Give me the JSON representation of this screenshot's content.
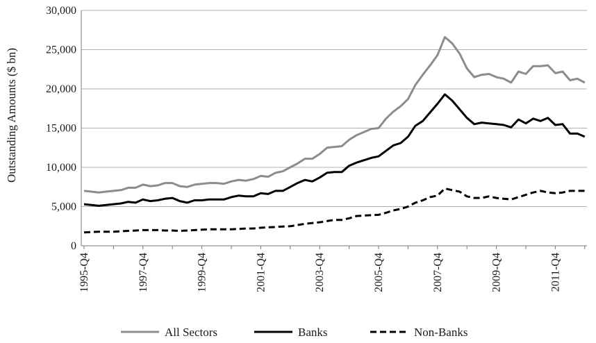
{
  "chart_data": {
    "type": "line",
    "ylabel": "Outstanding Amounts ($ bn)",
    "xlabel": "",
    "ylim": [
      0,
      30000
    ],
    "y_ticks": [
      0,
      5000,
      10000,
      15000,
      20000,
      25000,
      30000
    ],
    "y_tick_labels": [
      "0",
      "5,000",
      "10,000",
      "15,000",
      "20,000",
      "25,000",
      "30,000"
    ],
    "x_tick_labels": [
      "1995-Q4",
      "1997-Q4",
      "1999-Q4",
      "2001-Q4",
      "2003-Q4",
      "2005-Q4",
      "2007-Q4",
      "2009-Q4",
      "2011-Q4"
    ],
    "grid": "horizontal",
    "legend_position": "bottom",
    "x": [
      "1995-Q4",
      "1996-Q1",
      "1996-Q2",
      "1996-Q3",
      "1996-Q4",
      "1997-Q1",
      "1997-Q2",
      "1997-Q3",
      "1997-Q4",
      "1998-Q1",
      "1998-Q2",
      "1998-Q3",
      "1998-Q4",
      "1999-Q1",
      "1999-Q2",
      "1999-Q3",
      "1999-Q4",
      "2000-Q1",
      "2000-Q2",
      "2000-Q3",
      "2000-Q4",
      "2001-Q1",
      "2001-Q2",
      "2001-Q3",
      "2001-Q4",
      "2002-Q1",
      "2002-Q2",
      "2002-Q3",
      "2002-Q4",
      "2003-Q1",
      "2003-Q2",
      "2003-Q3",
      "2003-Q4",
      "2004-Q1",
      "2004-Q2",
      "2004-Q3",
      "2004-Q4",
      "2005-Q1",
      "2005-Q2",
      "2005-Q3",
      "2005-Q4",
      "2006-Q1",
      "2006-Q2",
      "2006-Q3",
      "2006-Q4",
      "2007-Q1",
      "2007-Q2",
      "2007-Q3",
      "2007-Q4",
      "2008-Q1",
      "2008-Q2",
      "2008-Q3",
      "2008-Q4",
      "2009-Q1",
      "2009-Q2",
      "2009-Q3",
      "2009-Q4",
      "2010-Q1",
      "2010-Q2",
      "2010-Q3",
      "2010-Q4",
      "2011-Q1",
      "2011-Q2",
      "2011-Q3",
      "2011-Q4",
      "2012-Q1",
      "2012-Q2",
      "2012-Q3",
      "2012-Q4"
    ],
    "series": [
      {
        "name": "All Sectors",
        "color": "#8c8c8c",
        "dash": "solid",
        "values": [
          7000,
          6900,
          6800,
          6900,
          7000,
          7100,
          7400,
          7400,
          7800,
          7600,
          7700,
          8000,
          8000,
          7600,
          7500,
          7800,
          7900,
          8000,
          8000,
          7900,
          8200,
          8400,
          8300,
          8500,
          8900,
          8800,
          9300,
          9500,
          10000,
          10500,
          11100,
          11100,
          11700,
          12500,
          12600,
          12700,
          13500,
          14100,
          14500,
          14900,
          15000,
          16200,
          17100,
          17800,
          18700,
          20500,
          21800,
          23000,
          24300,
          26600,
          25800,
          24500,
          22600,
          21500,
          21800,
          21900,
          21500,
          21300,
          20800,
          22200,
          21900,
          22900,
          22900,
          23000,
          22000,
          22200,
          21100,
          21300,
          20800
        ]
      },
      {
        "name": "Banks",
        "color": "#000000",
        "dash": "solid",
        "values": [
          5300,
          5200,
          5100,
          5200,
          5300,
          5400,
          5600,
          5500,
          5900,
          5700,
          5800,
          6000,
          6100,
          5700,
          5500,
          5800,
          5800,
          5900,
          5900,
          5900,
          6200,
          6400,
          6300,
          6300,
          6700,
          6600,
          7000,
          7000,
          7500,
          8000,
          8400,
          8200,
          8700,
          9300,
          9400,
          9400,
          10200,
          10600,
          10900,
          11200,
          11400,
          12100,
          12800,
          13100,
          13900,
          15300,
          15900,
          17000,
          18100,
          19300,
          18500,
          17400,
          16300,
          15500,
          15700,
          15600,
          15500,
          15400,
          15100,
          16100,
          15600,
          16200,
          15900,
          16300,
          15400,
          15500,
          14300,
          14300,
          13900
        ]
      },
      {
        "name": "Non-Banks",
        "color": "#000000",
        "dash": "dashed",
        "values": [
          1700,
          1750,
          1800,
          1800,
          1800,
          1850,
          1900,
          1950,
          2000,
          2000,
          2000,
          1950,
          1950,
          1900,
          1950,
          2000,
          2050,
          2100,
          2100,
          2100,
          2100,
          2150,
          2200,
          2200,
          2300,
          2350,
          2400,
          2450,
          2500,
          2650,
          2800,
          2900,
          3000,
          3150,
          3300,
          3300,
          3500,
          3800,
          3850,
          3900,
          3950,
          4200,
          4500,
          4700,
          5000,
          5500,
          5800,
          6200,
          6400,
          7300,
          7100,
          6900,
          6300,
          6100,
          6100,
          6300,
          6100,
          6000,
          5900,
          6200,
          6500,
          6800,
          7000,
          6800,
          6700,
          6800,
          7000,
          7000,
          7000
        ]
      }
    ]
  }
}
